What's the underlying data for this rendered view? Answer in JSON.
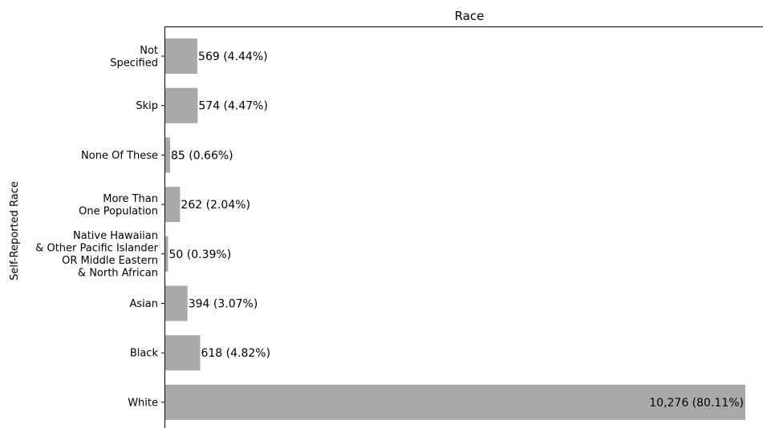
{
  "chart_data": {
    "type": "bar",
    "orientation": "horizontal",
    "title": "Race",
    "xlabel": "",
    "ylabel": "Self-Reported Race",
    "categories": [
      [
        "Not",
        "Specified"
      ],
      [
        "Skip"
      ],
      [
        "None Of These"
      ],
      [
        "More Than",
        "One Population"
      ],
      [
        "Native Hawaiian",
        "& Other Pacific Islander",
        "OR Middle Eastern",
        "& North African"
      ],
      [
        "Asian"
      ],
      [
        "Black"
      ],
      [
        "White"
      ]
    ],
    "values": [
      569,
      574,
      85,
      262,
      50,
      394,
      618,
      10276
    ],
    "data_labels": [
      "569 (4.44%)",
      "574 (4.47%)",
      "85 (0.66%)",
      "262 (2.04%)",
      "50 (0.39%)",
      "394 (3.07%)",
      "618 (4.82%)",
      "10,276 (80.11%)"
    ],
    "xlim": [
      0,
      10276
    ],
    "bar_color": "#a9a9a9",
    "grid": false,
    "legend": "none",
    "x_ticks_visible": false
  }
}
